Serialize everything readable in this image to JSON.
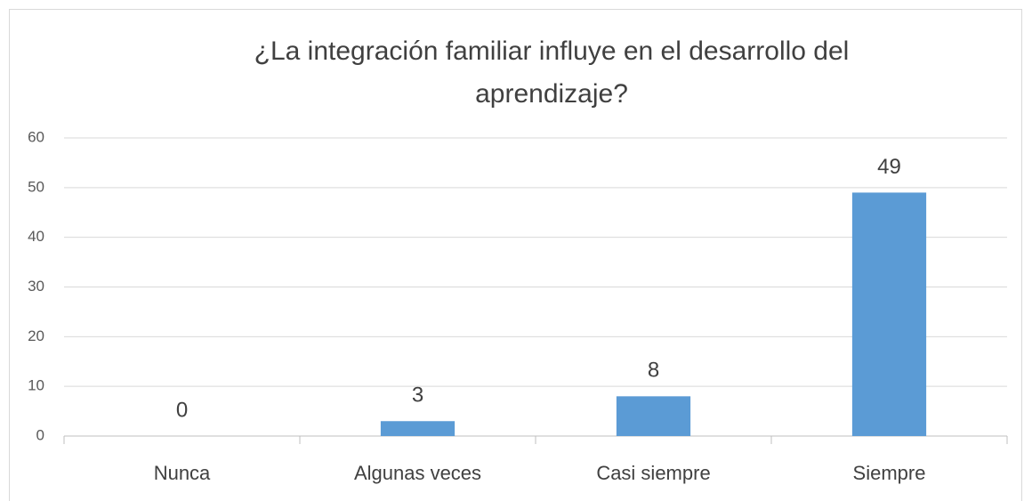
{
  "chart_data": {
    "type": "bar",
    "title": "¿La integración familiar influye en el desarrollo del aprendizaje?",
    "categories": [
      "Nunca",
      "Algunas veces",
      "Casi siempre",
      "Siempre"
    ],
    "values": [
      0,
      3,
      8,
      49
    ],
    "color": "#5b9bd5",
    "ylim": [
      0,
      60
    ],
    "yticks": [
      0,
      10,
      20,
      30,
      40,
      50,
      60
    ],
    "grid": true
  }
}
